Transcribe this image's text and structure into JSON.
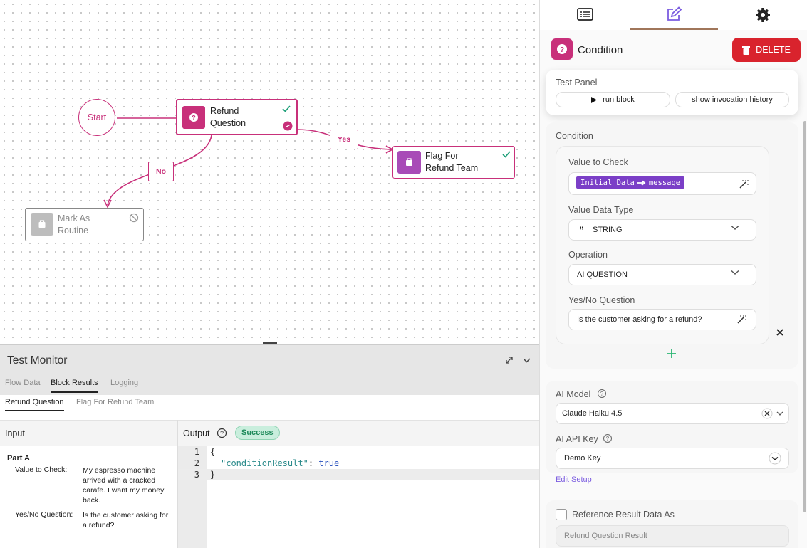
{
  "canvas": {
    "nodes": [
      {
        "label": "Start"
      },
      {
        "label": "Refund Question"
      },
      {
        "label": "Flag For Refund Team"
      },
      {
        "label": "Mark As Routine"
      }
    ],
    "edges": [
      {
        "label": "Yes"
      },
      {
        "label": "No"
      }
    ]
  },
  "panel": {
    "block_title": "Condition",
    "delete_button": "DELETE",
    "test_panel": {
      "title": "Test Panel",
      "run_button": "run block",
      "history_button": "show invocation history"
    },
    "condition": {
      "title": "Condition",
      "value_to_check": {
        "label": "Value to Check",
        "chip_source": "Initial Data",
        "chip_field": "message"
      },
      "value_data_type": {
        "label": "Value Data Type",
        "value": "STRING"
      },
      "operation": {
        "label": "Operation",
        "value": "AI QUESTION"
      },
      "question": {
        "label": "Yes/No Question",
        "value": "Is the customer asking for a refund?"
      }
    },
    "ai_model": {
      "label": "AI Model",
      "value": "Claude Haiku 4.5"
    },
    "ai_api_key": {
      "label": "AI API Key",
      "value": "Demo Key",
      "link": "Edit Setup"
    },
    "reference": {
      "label": "Reference Result Data As",
      "placeholder": "Refund Question Result"
    }
  },
  "monitor": {
    "title": "Test Monitor",
    "tabs": [
      "Flow Data",
      "Block Results",
      "Logging"
    ],
    "subtabs": [
      "Refund Question",
      "Flag For Refund Team"
    ],
    "input": {
      "title": "Input",
      "part": "Part A",
      "rows": [
        {
          "key": "Value to Check:",
          "value": "My espresso machine arrived with a cracked carafe. I want my money back."
        },
        {
          "key": "Yes/No Question:",
          "value": "Is the customer asking for a refund?"
        }
      ]
    },
    "output": {
      "title": "Output",
      "status": "Success",
      "lines": [
        {
          "number": 1,
          "text": "{"
        },
        {
          "number": 2,
          "key": "\"conditionResult\"",
          "punct": ": ",
          "value": "true"
        },
        {
          "number": 3,
          "text": "}"
        }
      ]
    }
  }
}
